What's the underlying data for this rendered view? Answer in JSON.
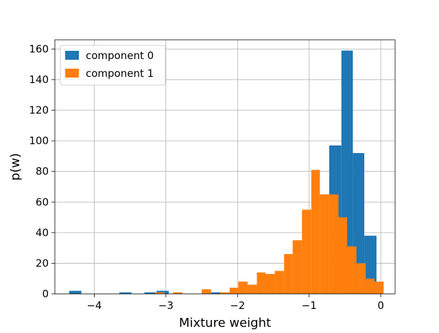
{
  "chart_data": {
    "type": "bar",
    "title": "",
    "xlabel": "Mixture weight",
    "ylabel": "p(w)",
    "xlim": [
      -4.55,
      0.2
    ],
    "ylim": [
      0,
      166
    ],
    "grid": true,
    "legend_position": "top-left",
    "xticks": [
      -4,
      -3,
      -2,
      -1,
      0
    ],
    "xtick_labels": [
      "−4",
      "−3",
      "−2",
      "−1",
      "0"
    ],
    "yticks": [
      0,
      20,
      40,
      60,
      80,
      100,
      120,
      140,
      160
    ],
    "ytick_labels": [
      "0",
      "20",
      "40",
      "60",
      "80",
      "100",
      "120",
      "140",
      "160"
    ],
    "series": [
      {
        "name": "component 0",
        "color": "#1f77b4",
        "bins": [
          {
            "x0": -4.35,
            "x1": -4.18,
            "count": 2
          },
          {
            "x0": -3.65,
            "x1": -3.48,
            "count": 1
          },
          {
            "x0": -3.3,
            "x1": -3.13,
            "count": 1
          },
          {
            "x0": -3.13,
            "x1": -2.96,
            "count": 2
          },
          {
            "x0": -2.37,
            "x1": -2.24,
            "count": 1
          },
          {
            "x0": -0.72,
            "x1": -0.55,
            "count": 97
          },
          {
            "x0": -0.55,
            "x1": -0.39,
            "count": 159
          },
          {
            "x0": -0.39,
            "x1": -0.23,
            "count": 92
          },
          {
            "x0": -0.23,
            "x1": -0.06,
            "count": 38
          }
        ]
      },
      {
        "name": "component 1",
        "color": "#ff7f0e",
        "bins": [
          {
            "x0": -3.15,
            "x1": -3.02,
            "count": 1
          },
          {
            "x0": -2.9,
            "x1": -2.77,
            "count": 1
          },
          {
            "x0": -2.5,
            "x1": -2.37,
            "count": 3
          },
          {
            "x0": -2.24,
            "x1": -2.11,
            "count": 1
          },
          {
            "x0": -2.11,
            "x1": -1.99,
            "count": 4
          },
          {
            "x0": -1.99,
            "x1": -1.86,
            "count": 8
          },
          {
            "x0": -1.86,
            "x1": -1.73,
            "count": 6
          },
          {
            "x0": -1.73,
            "x1": -1.61,
            "count": 14
          },
          {
            "x0": -1.61,
            "x1": -1.48,
            "count": 13
          },
          {
            "x0": -1.48,
            "x1": -1.35,
            "count": 15
          },
          {
            "x0": -1.35,
            "x1": -1.23,
            "count": 26
          },
          {
            "x0": -1.23,
            "x1": -1.1,
            "count": 35
          },
          {
            "x0": -1.1,
            "x1": -0.97,
            "count": 55
          },
          {
            "x0": -0.97,
            "x1": -0.85,
            "count": 81
          },
          {
            "x0": -0.85,
            "x1": -0.72,
            "count": 65
          },
          {
            "x0": -0.72,
            "x1": -0.59,
            "count": 65
          },
          {
            "x0": -0.59,
            "x1": -0.47,
            "count": 50
          },
          {
            "x0": -0.47,
            "x1": -0.34,
            "count": 31
          },
          {
            "x0": -0.34,
            "x1": -0.21,
            "count": 20
          },
          {
            "x0": -0.21,
            "x1": -0.09,
            "count": 10
          },
          {
            "x0": -0.09,
            "x1": 0.04,
            "count": 8
          }
        ]
      }
    ]
  }
}
